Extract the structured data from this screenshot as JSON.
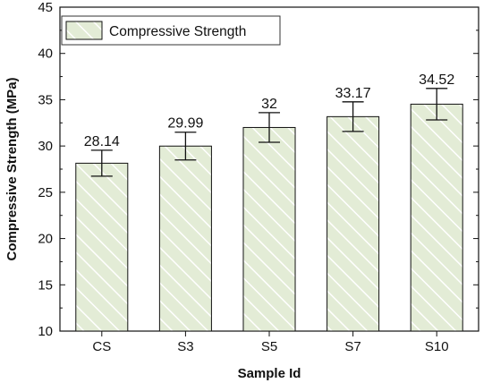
{
  "chart_data": {
    "type": "bar",
    "title": "",
    "xlabel": "Sample Id",
    "ylabel": "Compressive Strength (MPa)",
    "categories": [
      "CS",
      "S3",
      "S5",
      "S7",
      "S10"
    ],
    "series": [
      {
        "name": "Compressive Strength",
        "values": [
          28.14,
          29.99,
          32,
          33.17,
          34.52
        ],
        "value_labels": [
          "28.14",
          "29.99",
          "32",
          "33.17",
          "34.52"
        ],
        "error": [
          1.4,
          1.5,
          1.6,
          1.6,
          1.7
        ]
      }
    ],
    "ylim": [
      10,
      45
    ],
    "yticks": [
      10,
      15,
      20,
      25,
      30,
      35,
      40,
      45
    ],
    "grid": false,
    "legend_position": "top-left",
    "bar_fill": "#e3ecd6",
    "bar_hatch": "#ffffff",
    "bar_edge": "#111111"
  }
}
